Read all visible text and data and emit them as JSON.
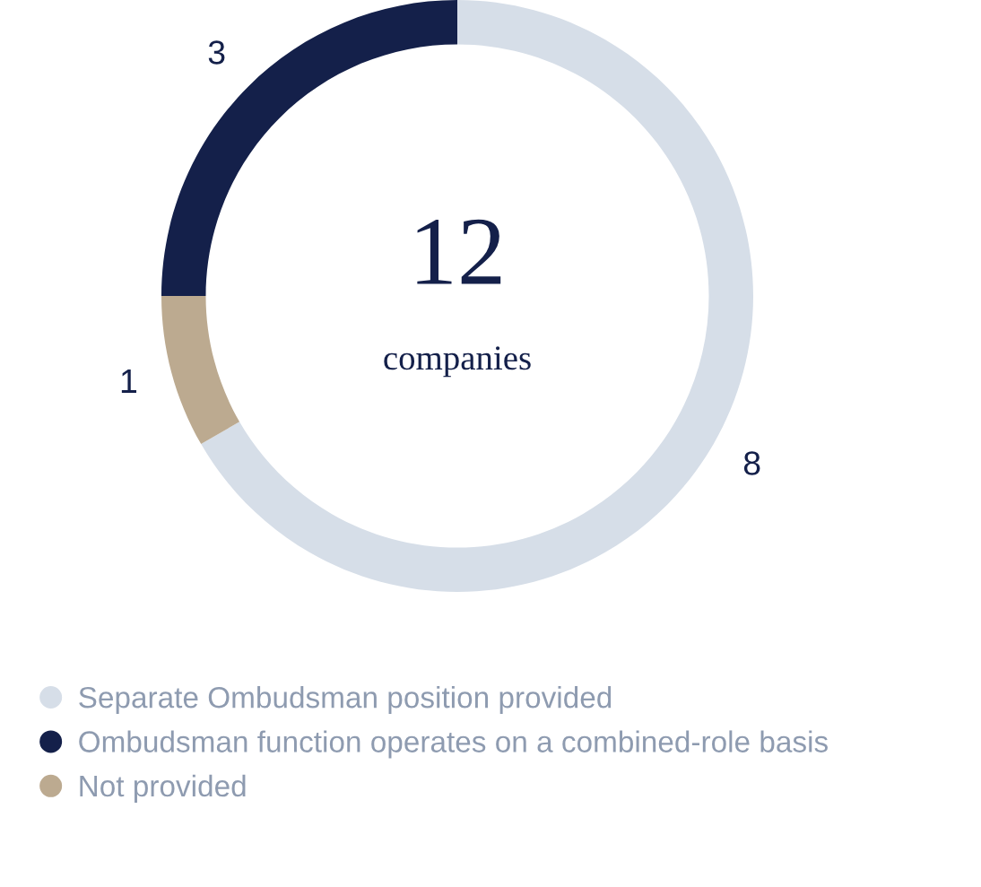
{
  "chart_data": {
    "type": "donut",
    "categories": [
      "Separate Ombudsman position provided",
      "Ombudsman function operates on a combined-role basis",
      "Not provided"
    ],
    "values": [
      8,
      3,
      1
    ],
    "colors": [
      "#d6dee8",
      "#14204a",
      "#bcaa90"
    ],
    "data_labels": true,
    "legend": "bottom",
    "annotations": [
      "12",
      "companies"
    ]
  }
}
